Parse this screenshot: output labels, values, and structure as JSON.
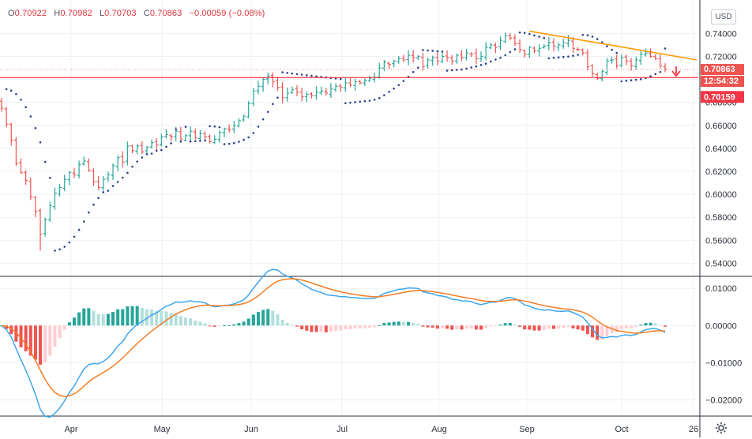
{
  "legend": {
    "open_key": "O",
    "open": "0.70922",
    "high_key": "H",
    "high": "0.70982",
    "low_key": "L",
    "low": "0.70703",
    "close_key": "C",
    "close": "0.70863",
    "change": "−0.00059 (−0.08%)"
  },
  "currency": "USD",
  "price_tags": {
    "last_price": "0.70863",
    "countdown": "12:54:32",
    "support_level": "0.70159"
  },
  "colors": {
    "up": "#26a69a",
    "down": "#ef5350",
    "sar": "#2a3f8f",
    "macd": "#3ea6ee",
    "signal": "#f57c21",
    "trendline": "#ff9800",
    "support": "#f23645",
    "hist_up_strong": "#26a69a",
    "hist_up_weak": "#b2dfdb",
    "hist_down_strong": "#ef5350",
    "hist_down_weak": "#ffcdd2"
  },
  "icons": {
    "settings": "gear-icon",
    "arrow": "down-arrow-icon"
  },
  "chart_data": [
    {
      "type": "ohlc",
      "pane": "price",
      "ylim": [
        0.53,
        0.765
      ],
      "yticks": [
        0.54,
        0.56,
        0.58,
        0.6,
        0.62,
        0.64,
        0.66,
        0.68,
        0.7,
        0.72,
        0.74
      ],
      "ytick_labels": [
        "0.54000",
        "0.56000",
        "0.58000",
        "0.60000",
        "0.62000",
        "0.64000",
        "0.66000",
        "0.68000",
        "0.70000",
        "0.72000",
        "0.74000"
      ],
      "months": [
        "Apr",
        "May",
        "Jun",
        "Jul",
        "Aug",
        "Sep",
        "Oct",
        "26"
      ],
      "grid": true,
      "series": [
        {
          "name": "Close",
          "type": "line",
          "values": [
            0.675,
            0.661,
            0.647,
            0.627,
            0.619,
            0.612,
            0.598,
            0.585,
            0.565,
            0.578,
            0.59,
            0.601,
            0.606,
            0.613,
            0.619,
            0.617,
            0.626,
            0.629,
            0.621,
            0.611,
            0.606,
            0.613,
            0.617,
            0.625,
            0.632,
            0.628,
            0.642,
            0.638,
            0.642,
            0.637,
            0.641,
            0.645,
            0.643,
            0.65,
            0.652,
            0.65,
            0.655,
            0.648,
            0.651,
            0.655,
            0.649,
            0.653,
            0.65,
            0.646,
            0.648,
            0.654,
            0.657,
            0.656,
            0.66,
            0.664,
            0.668,
            0.679,
            0.69,
            0.694,
            0.7,
            0.703,
            0.698,
            0.693,
            0.684,
            0.688,
            0.691,
            0.689,
            0.685,
            0.687,
            0.686,
            0.689,
            0.69,
            0.688,
            0.692,
            0.694,
            0.693,
            0.697,
            0.695,
            0.698,
            0.697,
            0.699,
            0.701,
            0.702,
            0.71,
            0.715,
            0.713,
            0.716,
            0.718,
            0.717,
            0.721,
            0.719,
            0.72,
            0.711,
            0.717,
            0.719,
            0.716,
            0.72,
            0.719,
            0.716,
            0.721,
            0.719,
            0.723,
            0.722,
            0.718,
            0.72,
            0.728,
            0.73,
            0.728,
            0.734,
            0.738,
            0.736,
            0.731,
            0.726,
            0.722,
            0.728,
            0.725,
            0.727,
            0.729,
            0.732,
            0.729,
            0.73,
            0.732,
            0.734,
            0.727,
            0.726,
            0.723,
            0.711,
            0.705,
            0.701,
            0.707,
            0.716,
            0.717,
            0.712,
            0.719,
            0.716,
            0.712,
            0.717,
            0.722,
            0.723,
            0.72,
            0.718,
            0.712,
            0.709
          ]
        },
        {
          "name": "Parabolic SAR",
          "type": "dots"
        }
      ],
      "annotations": [
        {
          "type": "trendline",
          "from": "Sep",
          "from_value": 0.742,
          "to": "26",
          "to_value": 0.717
        },
        {
          "type": "support_line",
          "value": 0.70159
        },
        {
          "type": "last_price_line",
          "value": 0.70863
        }
      ]
    },
    {
      "type": "macd",
      "pane": "oscillator",
      "ylim": [
        -0.0235,
        0.0128
      ],
      "yticks": [
        -0.02,
        -0.01,
        0.0,
        0.01
      ],
      "ytick_labels": [
        "−0.02000",
        "−0.01000",
        "0.00000",
        "0.01000"
      ],
      "series": [
        {
          "name": "MACD",
          "type": "line"
        },
        {
          "name": "Signal",
          "type": "line"
        },
        {
          "name": "Histogram",
          "type": "bar"
        }
      ]
    }
  ]
}
